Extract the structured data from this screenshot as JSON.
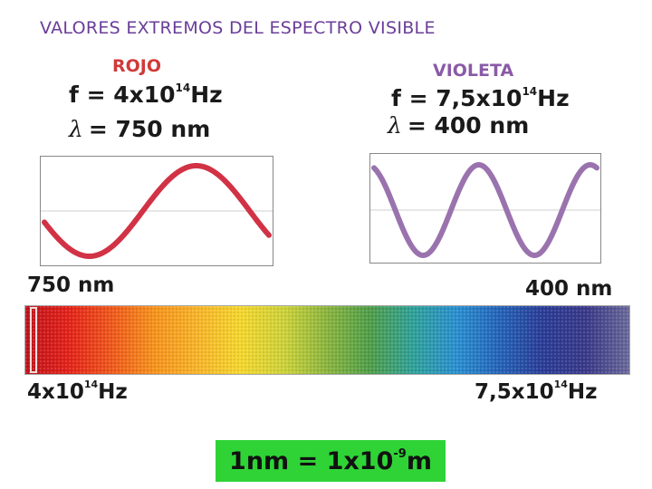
{
  "title": "VALORES EXTREMOS DEL ESPECTRO VISIBLE",
  "red": {
    "label": "ROJO",
    "freq_prefix": "f = 4x10",
    "freq_exp": "14",
    "freq_unit": "Hz",
    "lambda_symbol": "λ",
    "lambda_value": "= 750 nm",
    "color": "#d23245"
  },
  "violet": {
    "label": "VIOLETA",
    "freq_prefix": "f = 7,5x10",
    "freq_exp": "14",
    "freq_unit": "Hz",
    "lambda_symbol": "λ",
    "lambda_value": "= 400 nm",
    "color": "#9a73ae"
  },
  "spectrum": {
    "left_nm": "750 nm",
    "right_nm": "400 nm",
    "left_hz_prefix": "4x10",
    "left_hz_exp": "14",
    "left_hz_unit": "Hz",
    "right_hz_prefix": "7,5x10",
    "right_hz_exp": "14",
    "right_hz_unit": "Hz",
    "colors": [
      "#c0141c",
      "#e4231a",
      "#f0591c",
      "#f7941d",
      "#f8b52a",
      "#f5d72e",
      "#cdd23a",
      "#8ab53f",
      "#4f9e4a",
      "#2fa19a",
      "#2a8fd0",
      "#2563b8",
      "#2b3d97",
      "#3b3a8a",
      "#6b6a9a"
    ]
  },
  "unit": {
    "prefix": "1nm = 1x10",
    "exp": "-9",
    "suffix": "m",
    "bg": "#2fd336"
  }
}
